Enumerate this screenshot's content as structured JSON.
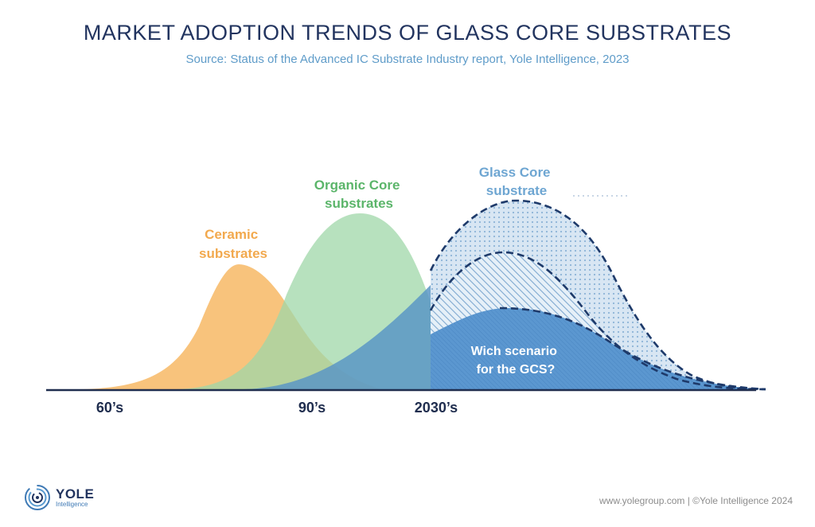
{
  "title": "MARKET ADOPTION TRENDS OF GLASS CORE SUBSTRATES",
  "subtitle": "Source: Status of the Advanced IC Substrate Industry report, Yole Intelligence, 2023",
  "chart_data": {
    "type": "area",
    "x_ticks": [
      "60’s",
      "90’s",
      "2030’s"
    ],
    "series": [
      {
        "name": "Ceramic substrates",
        "lines": [
          "Ceramic",
          "substrates"
        ],
        "color": "#f7bd6e",
        "relative_peak": 0.4
      },
      {
        "name": "Organic Core substrates",
        "lines": [
          "Organic Core",
          "substrates"
        ],
        "color": "#9fd7a8",
        "relative_peak": 0.57
      },
      {
        "name": "Glass Core substrate",
        "lines": [
          "Glass Core",
          "substrate"
        ],
        "color": "#5b97c6",
        "relative_peak": 0.61,
        "style": "dashed",
        "scenarios": [
          "high",
          "medium",
          "low"
        ]
      }
    ],
    "annotation": {
      "lines": [
        "Wich scenario",
        "for the GCS?"
      ]
    },
    "colors": {
      "ceramic": "#f7bd6e",
      "organic": "#9fd7a8",
      "glass": "#4a8cc6",
      "axis": "#1f2d4e",
      "dash": "#1e3a6a"
    },
    "grid": false,
    "legend": "none"
  },
  "logo": {
    "name": "YOLE",
    "sub": "Intelligence",
    "icon": "yole-swirl-icon"
  },
  "footer": "www.yolegroup.com | ©Yole Intelligence 2024"
}
